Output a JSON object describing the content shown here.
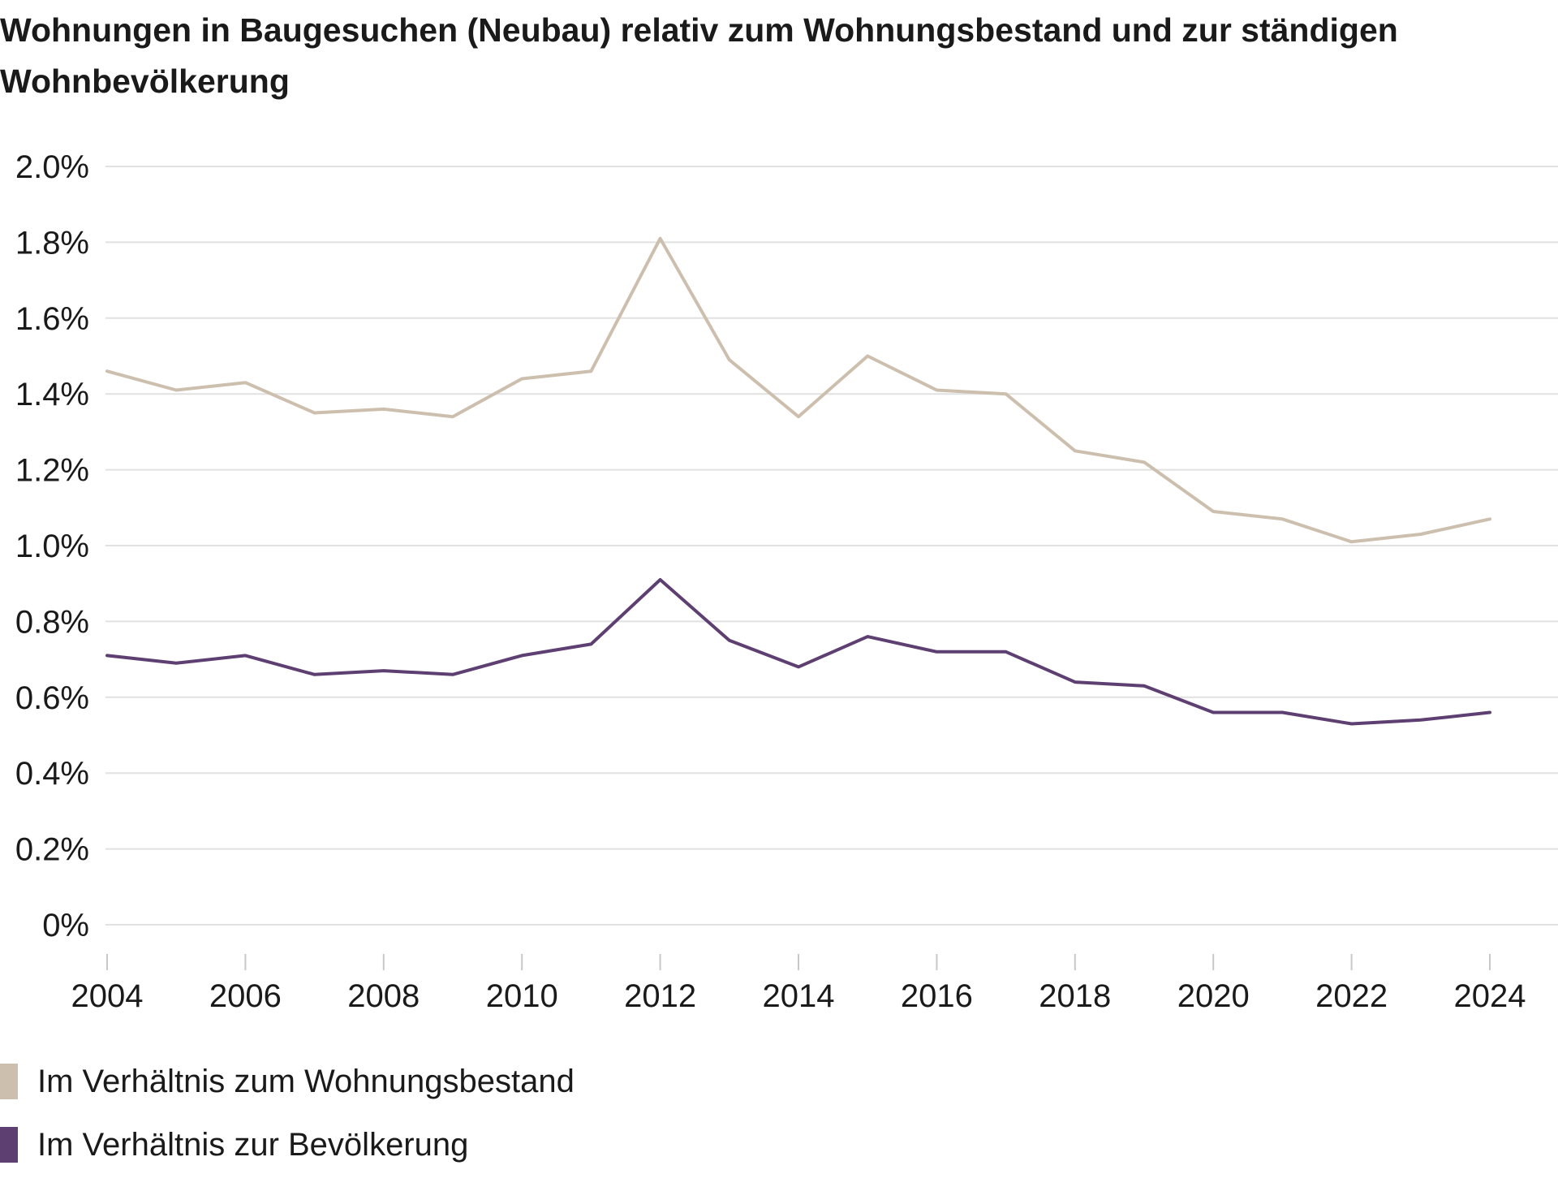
{
  "chart_data": {
    "type": "line",
    "title": "Wohnungen in Baugesuchen (Neubau) relativ zum Wohnungsbestand und zur ständigen Wohnbevölkerung",
    "xlabel": "",
    "ylabel": "",
    "x": [
      2004,
      2005,
      2006,
      2007,
      2008,
      2009,
      2010,
      2011,
      2012,
      2013,
      2014,
      2015,
      2016,
      2017,
      2018,
      2019,
      2020,
      2021,
      2022,
      2023,
      2024
    ],
    "xlim": [
      2004,
      2024.5
    ],
    "xticks": [
      "2004",
      "2006",
      "2008",
      "2010",
      "2012",
      "2014",
      "2016",
      "2018",
      "2020",
      "2022",
      "2024"
    ],
    "ylim": [
      0,
      2.0
    ],
    "yticks": [
      "0%",
      "0.2%",
      "0.4%",
      "0.6%",
      "0.8%",
      "1.0%",
      "1.2%",
      "1.4%",
      "1.6%",
      "1.8%",
      "2.0%"
    ],
    "grid": true,
    "legend_position": "bottom-left",
    "series": [
      {
        "name": "Im Verhältnis zum Wohnungsbestand",
        "color": "#cdbfae",
        "values": [
          1.46,
          1.41,
          1.43,
          1.35,
          1.36,
          1.34,
          1.44,
          1.46,
          1.81,
          1.49,
          1.34,
          1.5,
          1.41,
          1.4,
          1.25,
          1.22,
          1.09,
          1.07,
          1.01,
          1.03,
          1.07
        ]
      },
      {
        "name": "Im Verhältnis zur Bevölkerung",
        "color": "#5e3f72",
        "values": [
          0.71,
          0.69,
          0.71,
          0.66,
          0.67,
          0.66,
          0.71,
          0.74,
          0.91,
          0.75,
          0.68,
          0.76,
          0.72,
          0.72,
          0.64,
          0.63,
          0.56,
          0.56,
          0.53,
          0.54,
          0.56
        ]
      }
    ]
  }
}
